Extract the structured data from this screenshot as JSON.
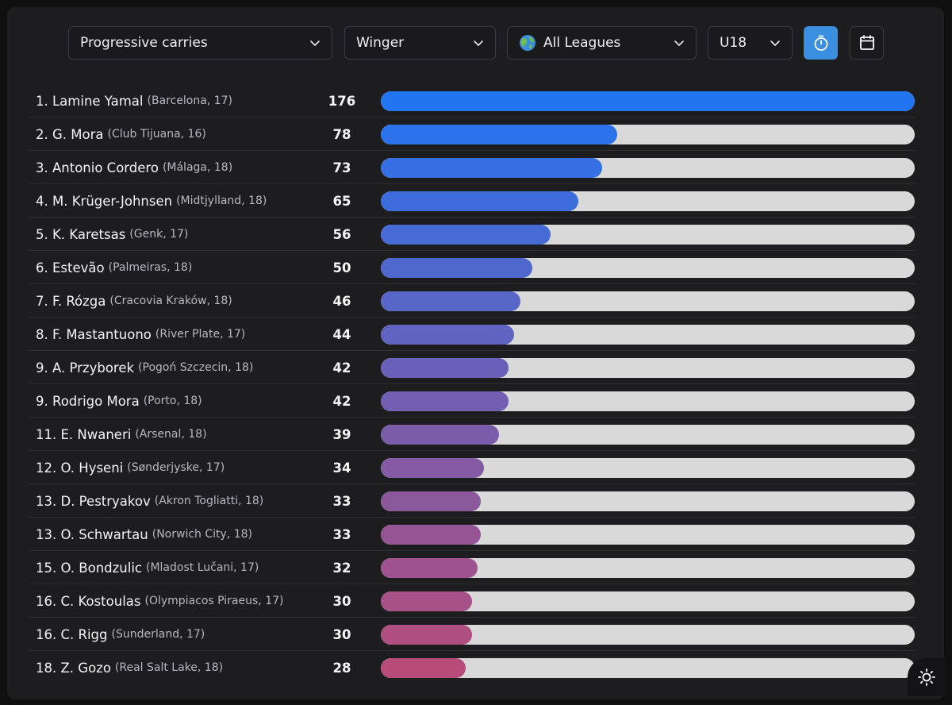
{
  "filters": {
    "metric": "Progressive carries",
    "position": "Winger",
    "league": "All Leagues",
    "age": "U18"
  },
  "icons": {
    "chevron": "chevron-down-icon",
    "globe": "globe-icon",
    "timer": "stopwatch-icon",
    "calendar": "calendar-icon",
    "theme": "sun-icon"
  },
  "colors": {
    "bar_start": "#2374f1",
    "bar_end": "#b84c79",
    "track": "#d9d9d9",
    "active_button": "#3a8fe0"
  },
  "chart_data": {
    "type": "bar",
    "orientation": "horizontal",
    "max_value": 176,
    "rows": [
      {
        "label": "1. Lamine Yamal",
        "detail": "(Barcelona, 17)",
        "value": 176
      },
      {
        "label": "2. G. Mora",
        "detail": "(Club Tijuana, 16)",
        "value": 78
      },
      {
        "label": "3. Antonio Cordero",
        "detail": "(Málaga, 18)",
        "value": 73
      },
      {
        "label": "4. M. Krüger-Johnsen",
        "detail": "(Midtjylland, 18)",
        "value": 65
      },
      {
        "label": "5. K. Karetsas",
        "detail": "(Genk, 17)",
        "value": 56
      },
      {
        "label": "6. Estevão",
        "detail": "(Palmeiras, 18)",
        "value": 50
      },
      {
        "label": "7. F. Rózga",
        "detail": "(Cracovia Kraków, 18)",
        "value": 46
      },
      {
        "label": "8. F. Mastantuono",
        "detail": "(River Plate, 17)",
        "value": 44
      },
      {
        "label": "9. A. Przyborek",
        "detail": "(Pogoń Szczecin, 18)",
        "value": 42
      },
      {
        "label": "9. Rodrigo Mora",
        "detail": "(Porto, 18)",
        "value": 42
      },
      {
        "label": "11. E. Nwaneri",
        "detail": "(Arsenal, 18)",
        "value": 39
      },
      {
        "label": "12. O. Hyseni",
        "detail": "(Sønderjyske, 17)",
        "value": 34
      },
      {
        "label": "13. D. Pestryakov",
        "detail": "(Akron Togliatti, 18)",
        "value": 33
      },
      {
        "label": "13. O. Schwartau",
        "detail": "(Norwich City, 18)",
        "value": 33
      },
      {
        "label": "15. O. Bondzulic",
        "detail": "(Mladost Lučani, 17)",
        "value": 32
      },
      {
        "label": "16. C. Kostoulas",
        "detail": "(Olympiacos Piraeus, 17)",
        "value": 30
      },
      {
        "label": "16. C. Rigg",
        "detail": "(Sunderland, 17)",
        "value": 30
      },
      {
        "label": "18. Z. Gozo",
        "detail": "(Real Salt Lake, 18)",
        "value": 28
      }
    ]
  }
}
